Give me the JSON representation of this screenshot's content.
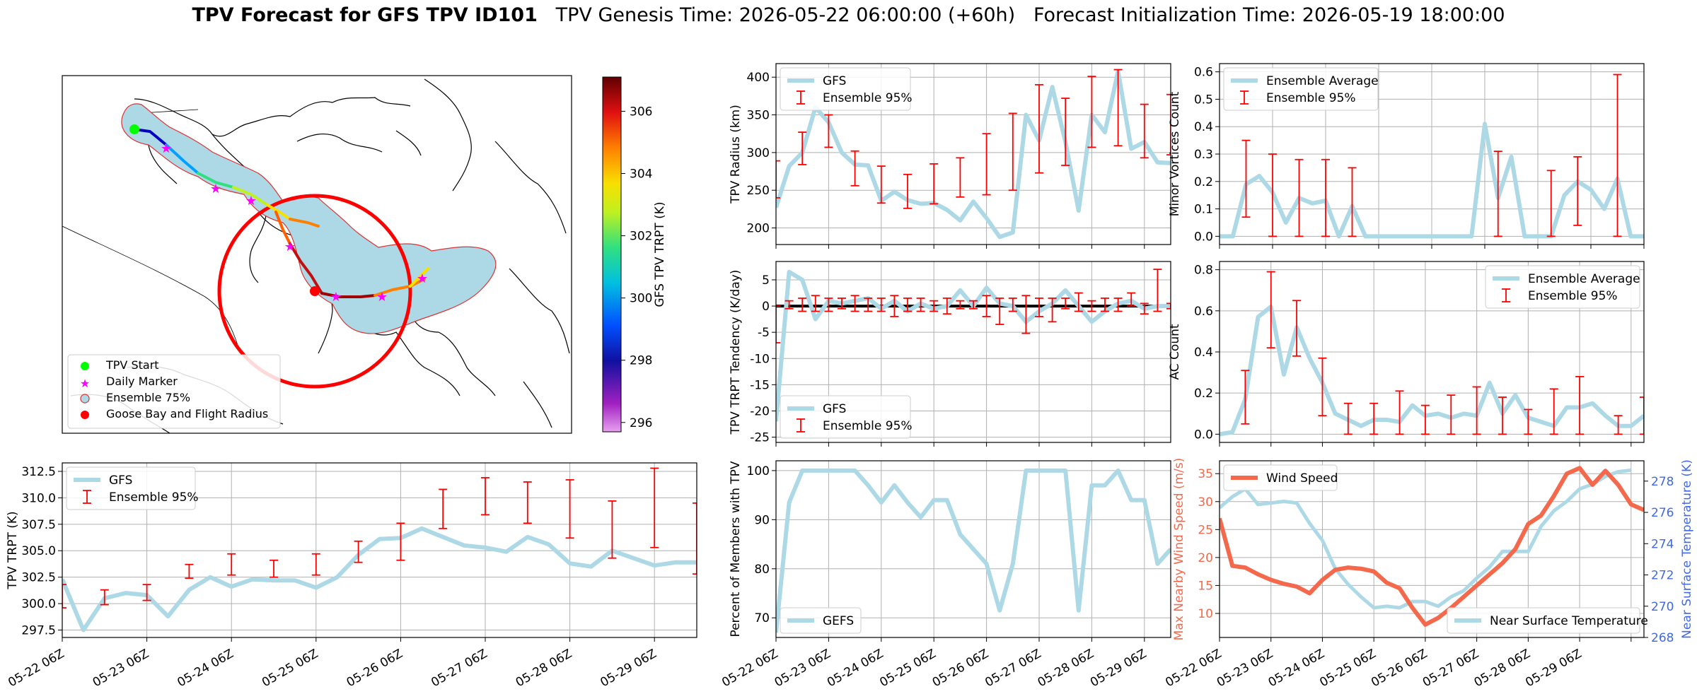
{
  "title": {
    "main": "TPV Forecast for GFS TPV ID101",
    "genesis": "TPV Genesis Time: 2026-05-22 06:00:00 (+60h)",
    "init": "Forecast Initialization Time: 2026-05-19 18:00:00"
  },
  "colors": {
    "gfs_line": "#add8e6",
    "errorbar": "#ff0000",
    "wind": "#f4694c",
    "temp_axis": "#4169e1",
    "goose_circle": "#ff0000"
  },
  "map_panel": {
    "legend": [
      "TPV Start",
      "Daily Marker",
      "Ensemble 75%",
      "Goose Bay and Flight Radius"
    ],
    "colorbar": {
      "label": "GFS TPV TRPT (K)",
      "ticks": [
        296,
        298,
        300,
        302,
        304,
        306
      ],
      "min": 295.7,
      "max": 307.1
    }
  },
  "chart_data": [
    {
      "id": "trpt",
      "type": "line",
      "ylabel": "TPV TRPT (K)",
      "ylim": [
        296.8,
        313.3
      ],
      "yticks": [
        297.5,
        300.0,
        302.5,
        305.0,
        307.5,
        310.0,
        312.5
      ],
      "xticks": [
        "05-22 06Z",
        "05-23 06Z",
        "05-24 06Z",
        "05-25 06Z",
        "05-26 06Z",
        "05-27 06Z",
        "05-28 06Z",
        "05-29 06Z"
      ],
      "legend": [
        "GFS",
        "Ensemble 95%"
      ],
      "gfs": [
        302.3,
        297.5,
        300.5,
        301.0,
        300.8,
        298.8,
        301.3,
        302.5,
        301.6,
        302.3,
        302.2,
        302.2,
        301.5,
        302.5,
        304.6,
        306.1,
        306.2,
        307.1,
        306.3,
        305.5,
        305.3,
        304.9,
        306.3,
        305.6,
        303.8,
        303.5,
        305.0,
        304.3,
        303.6,
        303.9,
        303.9
      ],
      "ens": [
        [
          0,
          299.6,
          301.8
        ],
        [
          2,
          299.9,
          301.3
        ],
        [
          4,
          300.3,
          301.8
        ],
        [
          6,
          302.4,
          303.7
        ],
        [
          8,
          302.7,
          304.7
        ],
        [
          10,
          302.5,
          304.1
        ],
        [
          12,
          302.7,
          304.7
        ],
        [
          14,
          303.9,
          305.9
        ],
        [
          16,
          304.1,
          307.6
        ],
        [
          18,
          307.1,
          310.8
        ],
        [
          20,
          308.4,
          311.9
        ],
        [
          22,
          307.6,
          311.5
        ],
        [
          24,
          306.2,
          311.7
        ],
        [
          26,
          304.3,
          309.7
        ],
        [
          28,
          305.3,
          312.8
        ],
        [
          30,
          302.8,
          309.5
        ]
      ]
    },
    {
      "id": "radius",
      "type": "line",
      "ylabel": "TPV Radius (km)",
      "ylim": [
        178,
        418
      ],
      "yticks": [
        200,
        250,
        300,
        350,
        400
      ],
      "legend": [
        "GFS",
        "Ensemble 95%"
      ],
      "gfs": [
        227,
        282,
        300,
        360,
        340,
        300,
        284,
        283,
        236,
        248,
        237,
        232,
        233,
        224,
        210,
        235,
        213,
        188,
        194,
        350,
        316,
        387,
        314,
        223,
        350,
        327,
        408,
        305,
        314,
        287,
        286
      ],
      "ens": [
        [
          0,
          240,
          289
        ],
        [
          2,
          284,
          327
        ],
        [
          4,
          307,
          350
        ],
        [
          6,
          256,
          302
        ],
        [
          8,
          233,
          282
        ],
        [
          10,
          226,
          271
        ],
        [
          12,
          232,
          285
        ],
        [
          14,
          241,
          293
        ],
        [
          16,
          244,
          325
        ],
        [
          18,
          250,
          352
        ],
        [
          20,
          273,
          390
        ],
        [
          22,
          283,
          372
        ],
        [
          24,
          307,
          401
        ],
        [
          26,
          309,
          410
        ],
        [
          28,
          293,
          364
        ],
        [
          30,
          297,
          377
        ]
      ]
    },
    {
      "id": "minor",
      "type": "line",
      "ylabel": "Minor Vortices Count",
      "ylim": [
        -0.03,
        0.63
      ],
      "yticks": [
        0.0,
        0.1,
        0.2,
        0.3,
        0.4,
        0.5,
        0.6
      ],
      "legend": [
        "Ensemble Average",
        "Ensemble 95%"
      ],
      "gfs": [
        0.0,
        0.0,
        0.19,
        0.22,
        0.16,
        0.05,
        0.14,
        0.12,
        0.13,
        0.0,
        0.11,
        0.0,
        0.0,
        0.0,
        0.0,
        0.0,
        0.0,
        0.0,
        0.0,
        0.0,
        0.41,
        0.14,
        0.29,
        0.0,
        0.0,
        0.0,
        0.15,
        0.2,
        0.17,
        0.1,
        0.21,
        0.0,
        0.0
      ],
      "ens": [
        [
          2,
          0.07,
          0.35
        ],
        [
          4,
          0.0,
          0.3
        ],
        [
          6,
          0.0,
          0.28
        ],
        [
          8,
          0.0,
          0.28
        ],
        [
          10,
          0.0,
          0.25
        ],
        [
          21,
          0.0,
          0.31
        ],
        [
          25,
          0.0,
          0.24
        ],
        [
          27,
          0.04,
          0.29
        ],
        [
          30,
          0.0,
          0.59
        ]
      ]
    },
    {
      "id": "tendency",
      "type": "line",
      "ylabel": "TPV TRPT Tendency (K/day)",
      "ylim": [
        -26,
        8.5
      ],
      "yticks": [
        -25,
        -20,
        -15,
        -10,
        -5,
        0,
        5
      ],
      "legend": [
        "GFS",
        "Ensemble 95%"
      ],
      "gfs": [
        -22,
        6.5,
        5,
        -2.5,
        1,
        0.5,
        1,
        1.5,
        -0.5,
        1,
        -1,
        0.5,
        -0.5,
        0,
        3,
        0,
        3.5,
        0.5,
        0,
        -3,
        -1,
        0.5,
        3,
        0,
        -3,
        -1,
        0.5,
        1,
        -0.5,
        0,
        0
      ],
      "ens": [
        [
          0,
          -7,
          0
        ],
        [
          1,
          -0.5,
          1
        ],
        [
          2,
          -1,
          1.5
        ],
        [
          3,
          -1,
          2
        ],
        [
          4,
          -1,
          1.5
        ],
        [
          5,
          -0.5,
          1.5
        ],
        [
          6,
          -1,
          2
        ],
        [
          7,
          -1,
          1.5
        ],
        [
          8,
          -1,
          1.5
        ],
        [
          9,
          -2,
          2
        ],
        [
          10,
          -1,
          1.5
        ],
        [
          11,
          -1,
          1.5
        ],
        [
          12,
          -1,
          1
        ],
        [
          13,
          -1.5,
          1.5
        ],
        [
          14,
          -0.5,
          1
        ],
        [
          15,
          -0.5,
          1
        ],
        [
          16,
          -2,
          2
        ],
        [
          17,
          -3.5,
          1.5
        ],
        [
          18,
          -1,
          1.5
        ],
        [
          19,
          -5.2,
          2
        ],
        [
          20,
          -2,
          1.5
        ],
        [
          21,
          -3,
          1.5
        ],
        [
          22,
          -0.5,
          1.5
        ],
        [
          23,
          -1,
          2.5
        ],
        [
          24,
          -1,
          1
        ],
        [
          25,
          -1,
          1.5
        ],
        [
          26,
          -1,
          1.5
        ],
        [
          27,
          0,
          2.5
        ],
        [
          28,
          -1.5,
          0.5
        ],
        [
          29,
          -1,
          7
        ],
        [
          30,
          -0.5,
          0.5
        ]
      ]
    },
    {
      "id": "ac",
      "type": "line",
      "ylabel": "AC Count",
      "ylim": [
        -0.04,
        0.84
      ],
      "yticks": [
        0.0,
        0.2,
        0.4,
        0.6,
        0.8
      ],
      "legend": [
        "Ensemble Average",
        "Ensemble 95%"
      ],
      "gfs": [
        0.0,
        0.01,
        0.17,
        0.57,
        0.62,
        0.29,
        0.52,
        0.37,
        0.25,
        0.1,
        0.07,
        0.04,
        0.07,
        0.07,
        0.06,
        0.14,
        0.09,
        0.1,
        0.08,
        0.1,
        0.09,
        0.25,
        0.1,
        0.19,
        0.08,
        0.06,
        0.04,
        0.13,
        0.13,
        0.15,
        0.09,
        0.04,
        0.04,
        0.09
      ],
      "ens": [
        [
          2,
          0.05,
          0.31
        ],
        [
          4,
          0.42,
          0.79
        ],
        [
          6,
          0.38,
          0.65
        ],
        [
          8,
          0.09,
          0.37
        ],
        [
          10,
          0.0,
          0.15
        ],
        [
          12,
          0.0,
          0.15
        ],
        [
          14,
          0.0,
          0.21
        ],
        [
          16,
          0.0,
          0.14
        ],
        [
          18,
          0.0,
          0.19
        ],
        [
          20,
          0.0,
          0.23
        ],
        [
          22,
          0.0,
          0.18
        ],
        [
          24,
          0.0,
          0.12
        ],
        [
          26,
          0.0,
          0.22
        ],
        [
          28,
          0.0,
          0.28
        ],
        [
          31,
          0.0,
          0.09
        ],
        [
          33,
          0.0,
          0.18
        ]
      ]
    },
    {
      "id": "members",
      "type": "line",
      "ylabel": "Percent of Members with TPV",
      "ylim": [
        66,
        102
      ],
      "yticks": [
        70,
        80,
        90,
        100
      ],
      "legend": [
        "GEFS"
      ],
      "gfs": [
        67,
        93.5,
        100,
        100,
        100,
        100,
        100,
        97,
        93.5,
        97,
        93.5,
        90.5,
        94,
        94,
        87,
        84,
        81,
        71.5,
        81,
        100,
        100,
        100,
        100,
        71.5,
        97,
        97,
        100,
        94,
        94,
        81,
        84
      ]
    },
    {
      "id": "wind_temp",
      "type": "line",
      "ylabel": "Max Nearby Wind Speed (m/s)",
      "ylabel_right": "Near Surface Temperature (K)",
      "ylim": [
        5.7,
        37.3
      ],
      "ylim_right": [
        268,
        279.3
      ],
      "yticks": [
        10,
        15,
        20,
        25,
        30,
        35
      ],
      "yticks_right": [
        268,
        270,
        272,
        274,
        276,
        278
      ],
      "legend": [
        "Wind Speed"
      ],
      "legend_right": [
        "Near Surface Temperature"
      ],
      "wind": [
        27,
        18.5,
        18.2,
        17,
        16,
        15.3,
        14.8,
        13.6,
        16,
        17.8,
        18.2,
        18,
        17.5,
        15.5,
        14.5,
        11,
        8,
        9.2,
        11,
        13,
        15,
        17,
        19,
        21.5,
        26,
        27.5,
        31,
        35,
        36,
        33,
        35.5,
        33,
        29.5,
        28.5
      ],
      "temp": [
        276.3,
        277.0,
        277.5,
        276.5,
        276.6,
        276.7,
        276.6,
        275.3,
        274.2,
        272.4,
        271.4,
        270.6,
        269.9,
        270.0,
        269.9,
        270.3,
        270.3,
        270.0,
        270.6,
        271.0,
        271.8,
        272.5,
        273.5,
        273.5,
        273.5,
        275.1,
        276.1,
        276.7,
        277.5,
        277.8,
        278.3,
        278.6,
        278.7
      ]
    }
  ]
}
